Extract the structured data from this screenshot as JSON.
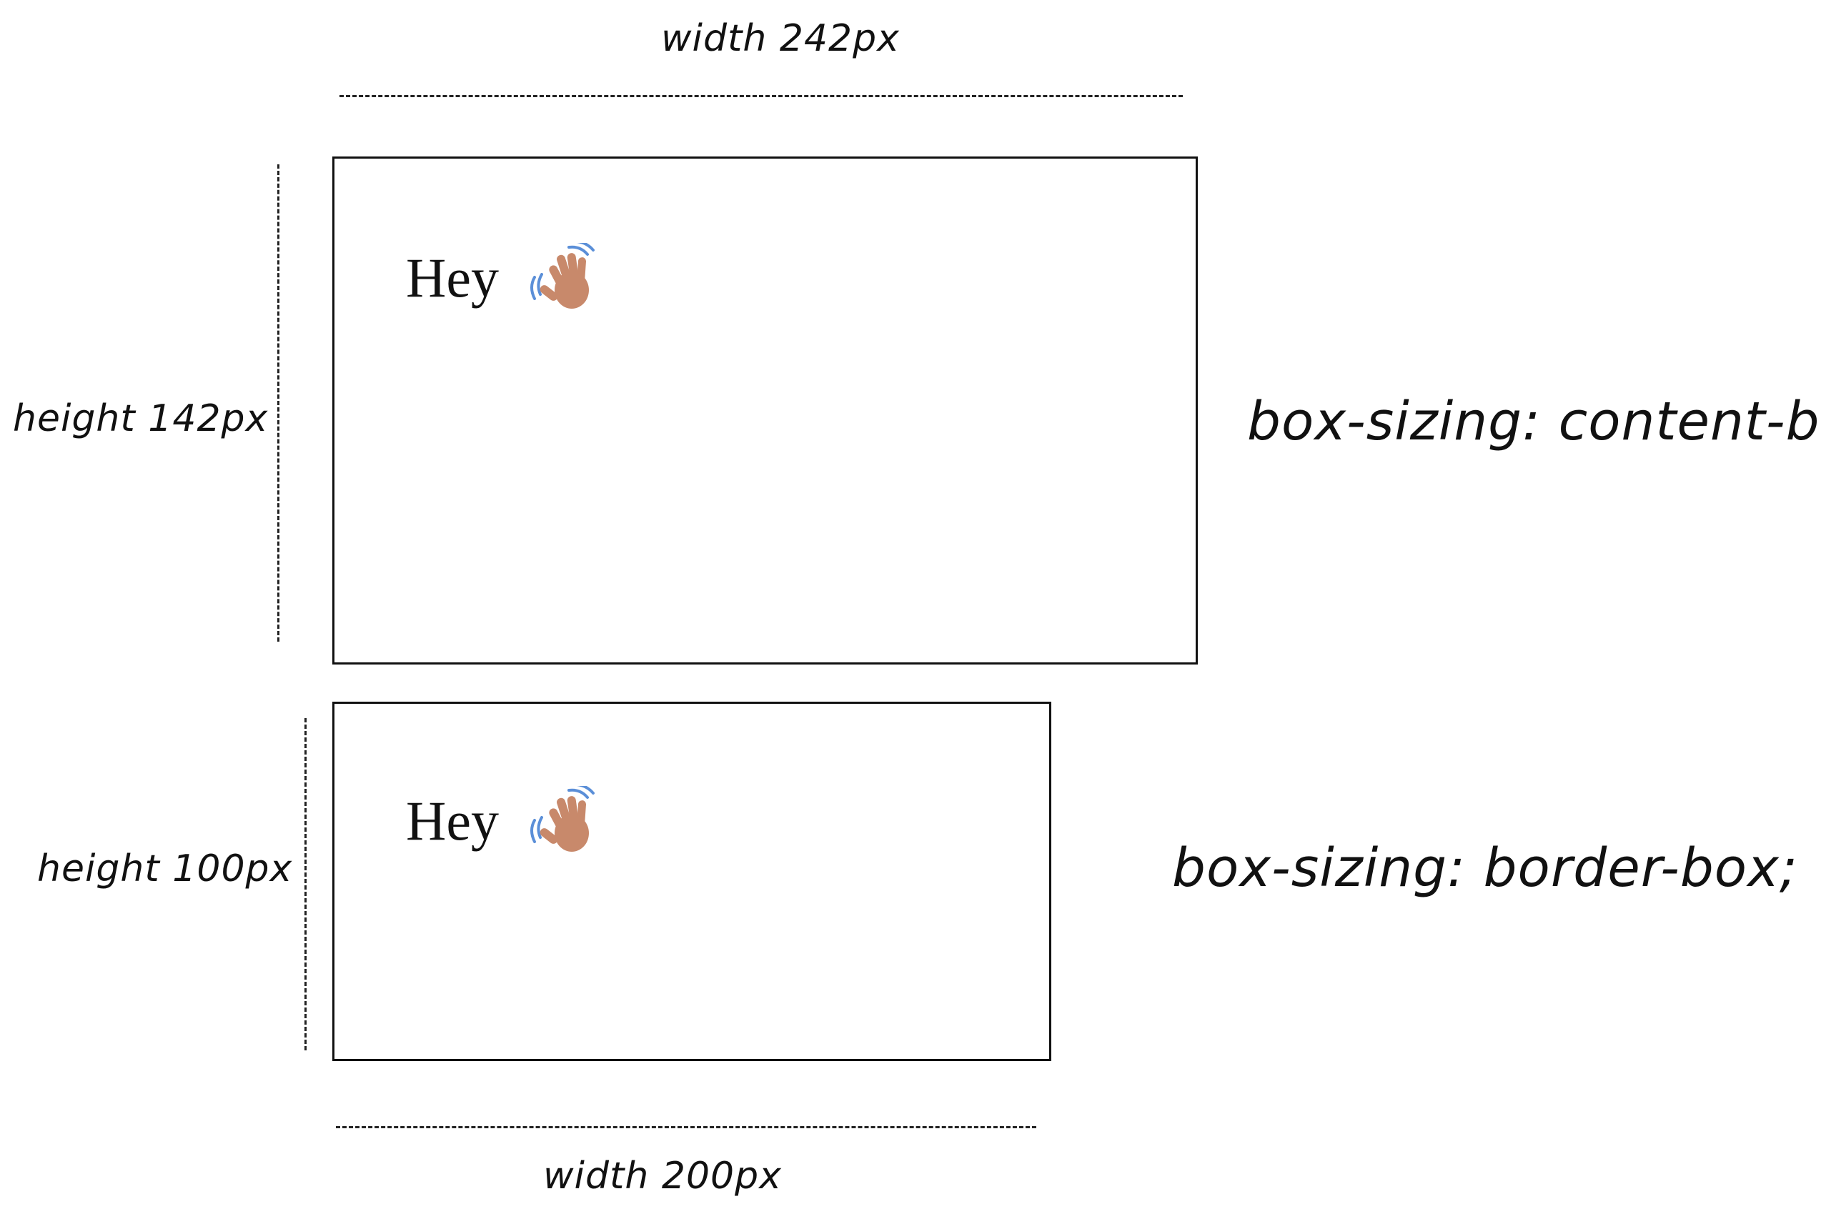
{
  "top_example": {
    "width_label": "width 242px",
    "height_label": "height 142px",
    "box_text": "Hey",
    "emoji": "waving-hand-icon",
    "box_sizing_label": "box-sizing: content-box;"
  },
  "bottom_example": {
    "width_label": "width 200px",
    "height_label": "height 100px",
    "box_text": "Hey",
    "emoji": "waving-hand-icon",
    "box_sizing_label": "box-sizing: border-box;"
  },
  "colors": {
    "stroke": "#111111",
    "hand_skin": "#c8896b",
    "wave_lines": "#5b8fd8"
  }
}
